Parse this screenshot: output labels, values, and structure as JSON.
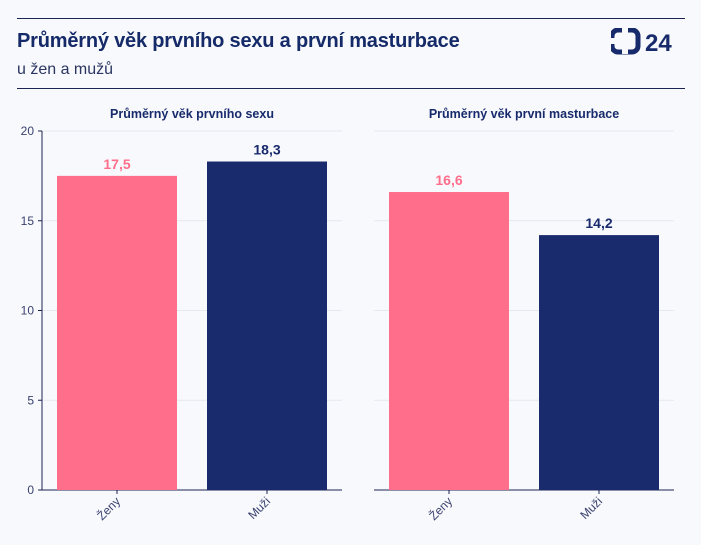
{
  "header": {
    "title": "Průměrný věk prvního sexu a první masturbace",
    "subtitle": "u žen a mužů",
    "logo_text": "24"
  },
  "colors": {
    "women": "#ff6e8b",
    "men": "#192a6d",
    "axis_text": "#3a4270",
    "grid": "#e6e8f0"
  },
  "chart_data": [
    {
      "type": "bar",
      "title": "Průměrný věk prvního sexu",
      "categories": [
        "Ženy",
        "Muži"
      ],
      "values": [
        17.5,
        18.3
      ],
      "value_labels": [
        "17,5",
        "18,3"
      ],
      "ylim": [
        0,
        20
      ],
      "yticks": [
        0,
        5,
        10,
        15,
        20
      ],
      "xlabel": "",
      "ylabel": "",
      "grid": true,
      "show_yaxis": true
    },
    {
      "type": "bar",
      "title": "Průměrný věk první masturbace",
      "categories": [
        "Ženy",
        "Muži"
      ],
      "values": [
        16.6,
        14.2
      ],
      "value_labels": [
        "16,6",
        "14,2"
      ],
      "ylim": [
        0,
        20
      ],
      "yticks": [
        0,
        5,
        10,
        15,
        20
      ],
      "xlabel": "",
      "ylabel": "",
      "grid": true,
      "show_yaxis": false
    }
  ]
}
